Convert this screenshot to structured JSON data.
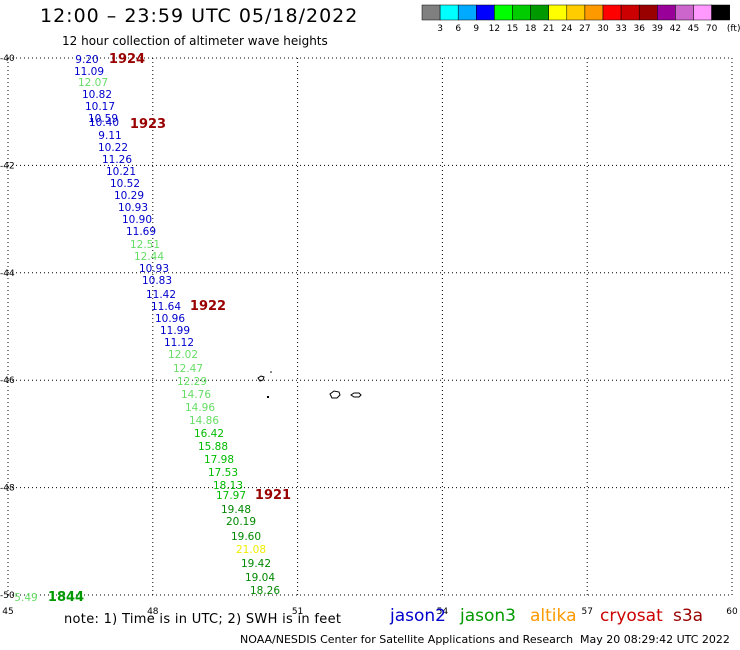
{
  "title": "12:00 – 23:59 UTC 05/18/2022",
  "subtitle": "12 hour collection of altimeter wave heights",
  "note": "note:  1) Time is in UTC;  2) SWH is in feet",
  "footer_left": "NOAA/NESDIS Center for Satellite Applications and Research",
  "footer_right": "May 20 08:29:42 UTC 2022",
  "legend": {
    "unit": "(ft)",
    "colors": [
      "#808080",
      "#00ffff",
      "#00aaff",
      "#0000ff",
      "#00ff00",
      "#00cc00",
      "#009900",
      "#ffff00",
      "#ffcc00",
      "#ff9900",
      "#ff0000",
      "#cc0000",
      "#990000",
      "#990099",
      "#cc66cc",
      "#ff99ff",
      "#000000"
    ],
    "labels": [
      "3",
      "6",
      "9",
      "12",
      "15",
      "18",
      "21",
      "24",
      "27",
      "30",
      "33",
      "36",
      "39",
      "42",
      "45",
      "70"
    ]
  },
  "axes": {
    "lon_min": 45,
    "lon_max": 60,
    "lat_min": -50,
    "lat_max": -40,
    "lon_ticks": [
      "45",
      "48",
      "51",
      "54",
      "57",
      "60"
    ],
    "lat_ticks": [
      "-40",
      "-42",
      "-44",
      "-46",
      "-48",
      "-50"
    ]
  },
  "satellites": [
    {
      "name": "jason2",
      "color": "#0000cc"
    },
    {
      "name": "jason3",
      "color": "#009900"
    },
    {
      "name": "altika",
      "color": "#ff9900"
    },
    {
      "name": "cryosat",
      "color": "#cc0000"
    },
    {
      "name": "s3a",
      "color": "#990000"
    }
  ],
  "readings": [
    {
      "text": "9.20",
      "color": "#0000cc"
    },
    {
      "text": "11.09",
      "color": "#0000cc"
    },
    {
      "text": "12.07",
      "color": "#66dd66"
    },
    {
      "text": "10.82",
      "color": "#0000cc"
    },
    {
      "text": "10.17",
      "color": "#0000cc"
    },
    {
      "text": "10.59",
      "color": "#0000cc"
    },
    {
      "text": "10.40",
      "color": "#0000cc"
    },
    {
      "text": "9.11",
      "color": "#0000cc"
    },
    {
      "text": "10.22",
      "color": "#0000cc"
    },
    {
      "text": "11.26",
      "color": "#0000cc"
    },
    {
      "text": "10.21",
      "color": "#0000cc"
    },
    {
      "text": "10.52",
      "color": "#0000cc"
    },
    {
      "text": "10.29",
      "color": "#0000cc"
    },
    {
      "text": "10.93",
      "color": "#0000cc"
    },
    {
      "text": "10.90",
      "color": "#0000cc"
    },
    {
      "text": "11.69",
      "color": "#0000cc"
    },
    {
      "text": "12.51",
      "color": "#66dd66"
    },
    {
      "text": "12.44",
      "color": "#66dd66"
    },
    {
      "text": "10.93",
      "color": "#0000cc"
    },
    {
      "text": "10.83",
      "color": "#0000cc"
    },
    {
      "text": "11.42",
      "color": "#0000cc"
    },
    {
      "text": "11.64",
      "color": "#0000cc"
    },
    {
      "text": "10.96",
      "color": "#0000cc"
    },
    {
      "text": "11.99",
      "color": "#0000cc"
    },
    {
      "text": "11.12",
      "color": "#0000cc"
    },
    {
      "text": "12.02",
      "color": "#66dd66"
    },
    {
      "text": "12.47",
      "color": "#66dd66"
    },
    {
      "text": "12.29",
      "color": "#66dd66"
    },
    {
      "text": "14.76",
      "color": "#66dd66"
    },
    {
      "text": "14.96",
      "color": "#66dd66"
    },
    {
      "text": "14.86",
      "color": "#66dd66"
    },
    {
      "text": "16.42",
      "color": "#00bb00"
    },
    {
      "text": "15.88",
      "color": "#00bb00"
    },
    {
      "text": "17.98",
      "color": "#00bb00"
    },
    {
      "text": "17.53",
      "color": "#00bb00"
    },
    {
      "text": "18.13",
      "color": "#00bb00"
    },
    {
      "text": "17.97",
      "color": "#00bb00"
    },
    {
      "text": "19.48",
      "color": "#008800"
    },
    {
      "text": "20.19",
      "color": "#008800"
    },
    {
      "text": "19.60",
      "color": "#008800"
    },
    {
      "text": "21.08",
      "color": "#eeee00"
    },
    {
      "text": "19.42",
      "color": "#008800"
    },
    {
      "text": "19.04",
      "color": "#008800"
    },
    {
      "text": "18.26",
      "color": "#008800"
    },
    {
      "text": "5.49",
      "color": "#66dd66"
    }
  ],
  "time_labels": [
    {
      "text": "1924",
      "color": "#990000"
    },
    {
      "text": "1923",
      "color": "#990000"
    },
    {
      "text": "1922",
      "color": "#990000"
    },
    {
      "text": "1921",
      "color": "#990000"
    },
    {
      "text": "1844",
      "color": "#009900"
    }
  ]
}
